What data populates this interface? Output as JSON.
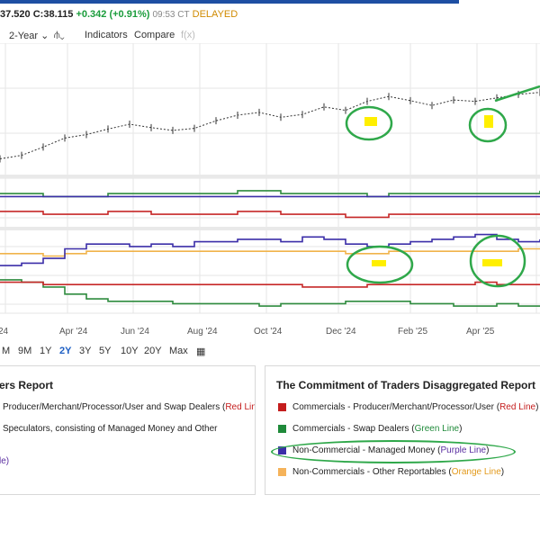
{
  "quote": {
    "prefix": "37.520",
    "close_label": "C:",
    "close_value": "38.115",
    "change": "+0.342 (+0.91%)",
    "time": "09:53 CT",
    "status": "DELAYED"
  },
  "toolbar": {
    "period": "2-Year",
    "indicators": "Indicators",
    "compare": "Compare",
    "fx": "f(x)"
  },
  "range_buttons": [
    "M",
    "9M",
    "1Y",
    "2Y",
    "3Y",
    "5Y",
    "10Y",
    "20Y",
    "Max"
  ],
  "active_range": "2Y",
  "left_panel": {
    "title": "ers Report",
    "line1": "Producer/Merchant/Processor/User and Swap Dealers (",
    "line1_color": "Red Line",
    "line2": "Speculators, consisting of Managed Money and Other",
    "line3_color": "le)"
  },
  "right_panel": {
    "title": "The Commitment of Traders Disaggregated Report",
    "items": [
      {
        "text": "Commercials - Producer/Merchant/Processor/User (",
        "color_label": "Red Line",
        "swatch": "#c41d1d"
      },
      {
        "text": "Commercials - Swap Dealers (",
        "color_label": "Green Line",
        "swatch": "#1f8a3a"
      },
      {
        "text": "Non-Commercial - Managed Money (",
        "color_label": "Purple Line",
        "swatch": "#3b2ea8"
      },
      {
        "text": "Non-Commercials - Other Reportables (",
        "color_label": "Orange Line",
        "swatch": "#f5b35a"
      }
    ]
  },
  "colors": {
    "price": "#333333",
    "red": "#c62828",
    "green": "#2e8b3e",
    "purple": "#3b2ea8",
    "orange": "#f0b34a",
    "highlight": "#ffef00",
    "annotation": "#2fa84a",
    "grid": "#e6e6e6"
  },
  "chart_data": {
    "type": "line",
    "x_labels": [
      "Apr '24",
      "Jun '24",
      "Aug '24",
      "Oct '24",
      "Dec '24",
      "Feb '25",
      "Apr '25"
    ],
    "series": [
      {
        "name": "",
        "values": [
          28.5,
          29.0,
          30.2,
          31.5,
          32.0,
          32.8,
          33.5,
          33.0,
          32.6,
          32.9,
          34.0,
          34.8,
          35.2,
          34.5,
          34.9,
          36.0,
          35.5,
          36.8,
          37.5,
          36.9,
          36.2,
          37.0,
          36.8,
          37.3,
          37.8,
          38.1
        ]
      },
      {
        "name": "Commercials - Swap Dealers",
        "values": [
          4,
          4,
          3,
          3,
          3,
          4,
          4,
          4,
          4,
          4,
          4,
          5,
          5,
          4,
          4,
          4,
          4,
          3,
          4,
          4,
          4,
          4,
          4,
          4,
          4,
          5
        ]
      },
      {
        "name": "Non-Commercial - Managed Money",
        "values": [
          3,
          3,
          3,
          3,
          3,
          3,
          3,
          3,
          3,
          3,
          3,
          3,
          3,
          3,
          3,
          3,
          3,
          3,
          3,
          3,
          3,
          3,
          3,
          3,
          3,
          3
        ]
      },
      {
        "name": "Commercials - Producer/Merchant/Processor/User",
        "values": [
          -2,
          -2,
          -3,
          -3,
          -3,
          -2,
          -2,
          -3,
          -3,
          -3,
          -3,
          -2,
          -2,
          -3,
          -3,
          -3,
          -4,
          -4,
          -3,
          -3,
          -3,
          -3,
          -3,
          -3,
          -3,
          -3
        ]
      },
      {
        "name": "Non-Commercial - Managed Money",
        "values": [
          2,
          3,
          5,
          9,
          11,
          11,
          10,
          11,
          10,
          12,
          12,
          13,
          13,
          12,
          14,
          13,
          11,
          10,
          11,
          12,
          13,
          14,
          15,
          13,
          12,
          13
        ]
      },
      {
        "name": "Non-Commercials - Other Reportables",
        "values": [
          7,
          7,
          6,
          7,
          8,
          8,
          8,
          8,
          8,
          8,
          8,
          8,
          8,
          8,
          8,
          8,
          7,
          7,
          8,
          8,
          8,
          8,
          8,
          8,
          9,
          9
        ]
      },
      {
        "name": "Commercials - Swap Dealers",
        "values": [
          -4,
          -5,
          -7,
          -10,
          -12,
          -13,
          -13,
          -13,
          -14,
          -14,
          -14,
          -14,
          -15,
          -14,
          -14,
          -14,
          -13,
          -13,
          -13,
          -14,
          -14,
          -15,
          -15,
          -14,
          -15,
          -15
        ]
      },
      {
        "name": "Commercials - Producer/Merchant/Processor/User",
        "values": [
          -5,
          -5,
          -6,
          -6,
          -6,
          -6,
          -6,
          -6,
          -6,
          -6,
          -6,
          -6,
          -6,
          -6,
          -7,
          -7,
          -7,
          -6,
          -6,
          -6,
          -6,
          -6,
          -5,
          -6,
          -6,
          -6
        ]
      }
    ]
  }
}
